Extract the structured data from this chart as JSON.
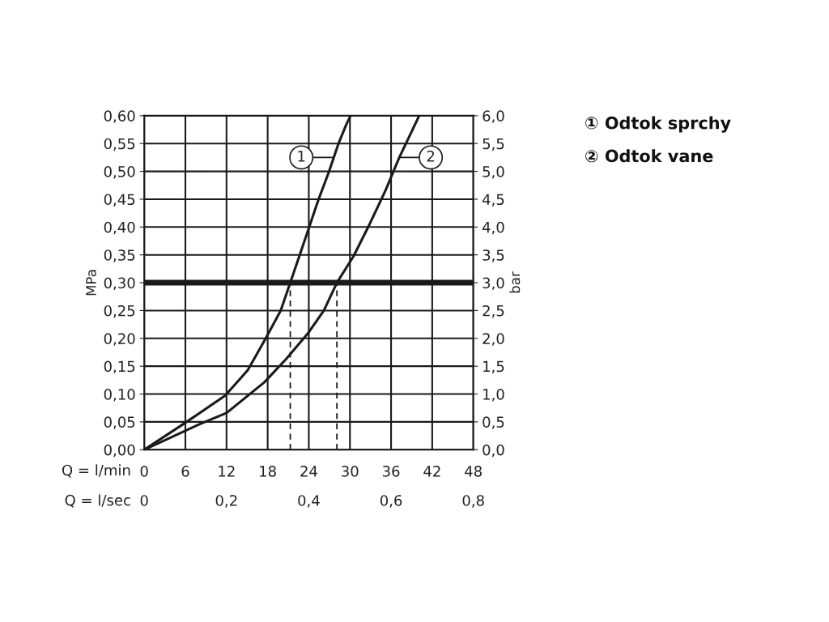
{
  "chart_data": {
    "type": "line",
    "xlabel": "Q = l/min",
    "x2label": "Q = l/sec",
    "ylabel": "MPa",
    "y2label": "bar",
    "xlim": [
      0,
      48
    ],
    "xticks": [
      0,
      6,
      12,
      18,
      24,
      30,
      36,
      42,
      48
    ],
    "x2lim": [
      0,
      0.8
    ],
    "x2ticks": [
      0,
      {
        "value": 0.2,
        "label": "0,2"
      },
      {
        "value": 0.4,
        "label": "0,4"
      },
      {
        "value": 0.6,
        "label": "0,6"
      },
      {
        "value": 0.8,
        "label": "0,8"
      }
    ],
    "ylim": [
      0,
      0.6
    ],
    "yticks": [
      {
        "value": 0,
        "label": "0,00"
      },
      {
        "value": 0.05,
        "label": "0,05"
      },
      {
        "value": 0.1,
        "label": "0,10"
      },
      {
        "value": 0.15,
        "label": "0,15"
      },
      {
        "value": 0.2,
        "label": "0,20"
      },
      {
        "value": 0.25,
        "label": "0,25"
      },
      {
        "value": 0.3,
        "label": "0,30"
      },
      {
        "value": 0.35,
        "label": "0,35"
      },
      {
        "value": 0.4,
        "label": "0,40"
      },
      {
        "value": 0.45,
        "label": "0,45"
      },
      {
        "value": 0.5,
        "label": "0,50"
      },
      {
        "value": 0.55,
        "label": "0,55"
      },
      {
        "value": 0.6,
        "label": "0,60"
      }
    ],
    "y2lim": [
      0,
      6
    ],
    "y2ticks": [
      {
        "value": 0,
        "label": "0,0"
      },
      {
        "value": 0.5,
        "label": "0,5"
      },
      {
        "value": 1,
        "label": "1,0"
      },
      {
        "value": 1.5,
        "label": "1,5"
      },
      {
        "value": 2,
        "label": "2,0"
      },
      {
        "value": 2.5,
        "label": "2,5"
      },
      {
        "value": 3,
        "label": "3,0"
      },
      {
        "value": 3.5,
        "label": "3,5"
      },
      {
        "value": 4,
        "label": "4,0"
      },
      {
        "value": 4.5,
        "label": "4,5"
      },
      {
        "value": 5,
        "label": "5,0"
      },
      {
        "value": 5.5,
        "label": "5,5"
      },
      {
        "value": 6,
        "label": "6,0"
      }
    ],
    "grid": true,
    "series": [
      {
        "color": "#1a1a1a",
        "line_style": "solid",
        "x": [
          0,
          5.7,
          11.8,
          15.1,
          17.8,
          19.9,
          21.3,
          22.6,
          24.0,
          25.4,
          26.9,
          28.3,
          29.5,
          30.1
        ],
        "values": [
          0,
          0.046,
          0.097,
          0.143,
          0.202,
          0.25,
          0.3,
          0.347,
          0.398,
          0.449,
          0.498,
          0.549,
          0.585,
          0.6
        ]
      },
      {
        "color": "#1a1a1a",
        "line_style": "solid",
        "x": [
          0,
          8.1,
          12.0,
          17.5,
          20.7,
          24.0,
          26.2,
          28.1,
          30.5,
          32.9,
          35.2,
          37.2,
          40.1
        ],
        "values": [
          0,
          0.046,
          0.066,
          0.121,
          0.163,
          0.211,
          0.25,
          0.3,
          0.347,
          0.406,
          0.466,
          0.525,
          0.6
        ]
      },
      {
        "color": "#1a1a1a",
        "line_style": "dashed",
        "x": [
          21.3,
          21.3
        ],
        "values": [
          0,
          0.3
        ]
      },
      {
        "color": "#1a1a1a",
        "line_style": "dashed",
        "x": [
          28.1,
          28.1
        ],
        "values": [
          0,
          0.3
        ]
      }
    ],
    "ref_lines": [
      {
        "axis": "y",
        "value": 0.3,
        "color": "#1a1a1a"
      }
    ],
    "annotations": [
      {
        "text": "1",
        "x": 27.5,
        "y": 0.525
      },
      {
        "text": "2",
        "x": 37.2,
        "y": 0.525
      },
      "① Odtok sprchy",
      "② Odtok vane"
    ]
  }
}
